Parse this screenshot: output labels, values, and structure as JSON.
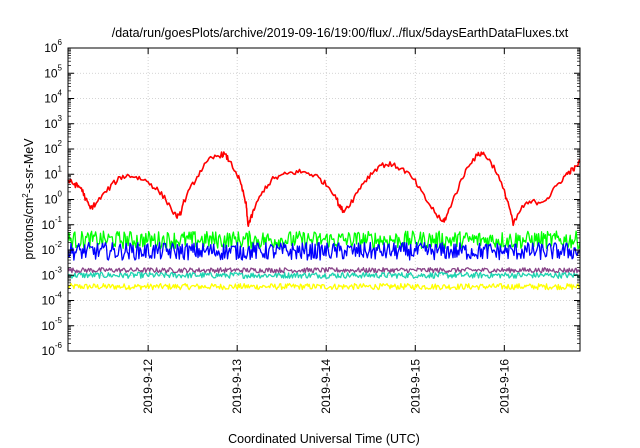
{
  "chart_data": {
    "type": "line",
    "title": "/data/run/goesPlots/archive/2019-09-16/19:00/flux/../flux/5daysEarthDataFluxes.txt",
    "xlabel": "Coordinated Universal Time (UTC)",
    "ylabel": {
      "prefix": "protons/cm",
      "sup": "2",
      "suffix": "-s-sr-MeV"
    },
    "yscale": "log",
    "ylim_exp": [
      -6,
      6
    ],
    "y_tick_base": "10",
    "y_tick_exponents": [
      "-6",
      "-5",
      "-4",
      "-3",
      "-2",
      "-1",
      "0",
      "1",
      "2",
      "3",
      "4",
      "5",
      "6"
    ],
    "xlim_days": [
      11.1,
      16.85
    ],
    "x_ticks": [
      {
        "label": "2019-9-12",
        "day": 12
      },
      {
        "label": "2019-9-13",
        "day": 13
      },
      {
        "label": "2019-9-14",
        "day": 14
      },
      {
        "label": "2019-9-15",
        "day": 15
      },
      {
        "label": "2019-9-16",
        "day": 16
      }
    ],
    "grid": true,
    "series": [
      {
        "color": "#ffff00",
        "log_mean": -3.45,
        "log_noise": 0.12
      },
      {
        "color": "#1dd3b0",
        "log_mean": -3.0,
        "log_noise": 0.12
      },
      {
        "color": "#884488",
        "log_mean": -2.8,
        "log_noise": 0.1
      },
      {
        "color": "#00ff00",
        "log_mean": -1.6,
        "log_noise": 0.35
      },
      {
        "color": "#0000ff",
        "log_mean": -2.05,
        "log_noise": 0.35
      },
      {
        "color": "#ff0000",
        "points": [
          [
            11.1,
            0.75
          ],
          [
            11.15,
            0.65
          ],
          [
            11.2,
            0.55
          ],
          [
            11.25,
            0.45
          ],
          [
            11.3,
            0.0
          ],
          [
            11.35,
            -0.35
          ],
          [
            11.4,
            -0.2
          ],
          [
            11.5,
            0.2
          ],
          [
            11.6,
            0.6
          ],
          [
            11.7,
            0.9
          ],
          [
            11.8,
            0.95
          ],
          [
            11.9,
            0.85
          ],
          [
            12.0,
            0.7
          ],
          [
            12.1,
            0.4
          ],
          [
            12.2,
            0.0
          ],
          [
            12.3,
            -0.6
          ],
          [
            12.35,
            -0.7
          ],
          [
            12.4,
            -0.1
          ],
          [
            12.5,
            0.6
          ],
          [
            12.6,
            1.2
          ],
          [
            12.7,
            1.6
          ],
          [
            12.8,
            1.75
          ],
          [
            12.85,
            1.8
          ],
          [
            12.9,
            1.6
          ],
          [
            13.0,
            1.0
          ],
          [
            13.05,
            0.5
          ],
          [
            13.1,
            -0.2
          ],
          [
            13.12,
            -1.0
          ],
          [
            13.15,
            -0.8
          ],
          [
            13.2,
            -0.3
          ],
          [
            13.3,
            0.4
          ],
          [
            13.4,
            0.8
          ],
          [
            13.5,
            0.95
          ],
          [
            13.6,
            1.05
          ],
          [
            13.7,
            1.1
          ],
          [
            13.8,
            1.05
          ],
          [
            13.9,
            0.9
          ],
          [
            14.0,
            0.6
          ],
          [
            14.1,
            0.2
          ],
          [
            14.15,
            -0.3
          ],
          [
            14.2,
            -0.45
          ],
          [
            14.3,
            0.0
          ],
          [
            14.4,
            0.6
          ],
          [
            14.5,
            1.0
          ],
          [
            14.6,
            1.35
          ],
          [
            14.7,
            1.4
          ],
          [
            14.8,
            1.3
          ],
          [
            14.9,
            1.1
          ],
          [
            15.0,
            0.7
          ],
          [
            15.1,
            0.1
          ],
          [
            15.2,
            -0.4
          ],
          [
            15.3,
            -0.9
          ],
          [
            15.35,
            -0.7
          ],
          [
            15.4,
            -0.2
          ],
          [
            15.5,
            0.6
          ],
          [
            15.6,
            1.4
          ],
          [
            15.7,
            1.75
          ],
          [
            15.75,
            1.85
          ],
          [
            15.8,
            1.7
          ],
          [
            15.9,
            1.2
          ],
          [
            16.0,
            0.3
          ],
          [
            16.05,
            -0.2
          ],
          [
            16.1,
            -1.0
          ],
          [
            16.2,
            -0.3
          ],
          [
            16.3,
            -0.1
          ],
          [
            16.4,
            -0.1
          ],
          [
            16.5,
            0.1
          ],
          [
            16.6,
            0.6
          ],
          [
            16.7,
            1.0
          ],
          [
            16.75,
            1.15
          ],
          [
            16.8,
            1.25
          ],
          [
            16.85,
            1.5
          ]
        ]
      }
    ]
  }
}
